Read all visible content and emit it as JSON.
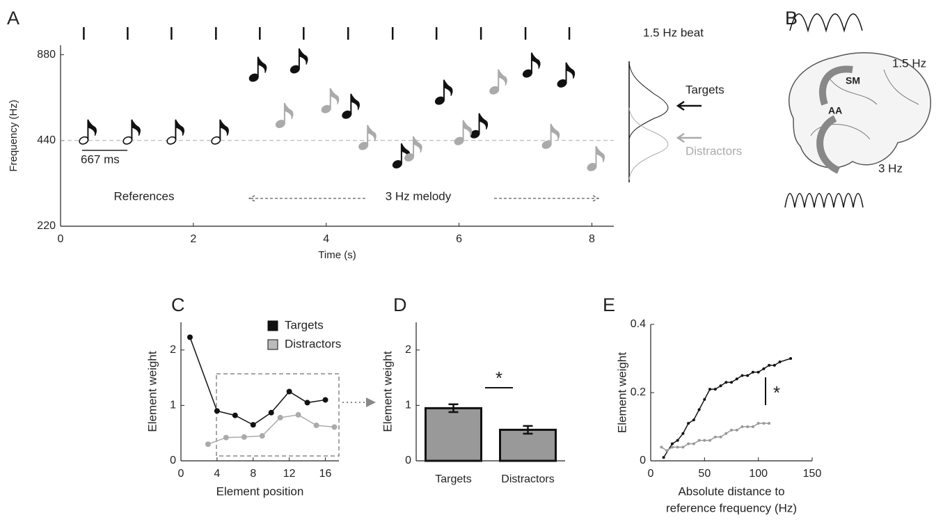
{
  "chart_data": [
    {
      "type": "scatter",
      "panel": "A",
      "xlabel": "Time (s)",
      "ylabel": "Frequency (Hz)",
      "xlim": [
        0,
        8.33
      ],
      "xticks": [
        0,
        2,
        4,
        6,
        8
      ],
      "ylim": [
        220,
        950
      ],
      "yticks": [
        220,
        440,
        880
      ],
      "log_y": true,
      "beat_label": "1.5 Hz beat",
      "beat_times": [
        0.35,
        1.01,
        1.67,
        2.34,
        3.0,
        3.66,
        4.33,
        5.0,
        5.66,
        6.33,
        7.0,
        7.66
      ],
      "reference_frequency": 440,
      "scale_bar_label": "667 ms",
      "melody_label": "3 Hz melody",
      "series": [
        {
          "name": "References",
          "color": "#111111",
          "hollow": true,
          "x": [
            0.35,
            1.01,
            1.67,
            2.34
          ],
          "values": [
            440,
            440,
            440,
            440
          ]
        },
        {
          "name": "Targets",
          "color": "#111111",
          "x": [
            2.91,
            3.53,
            4.31,
            5.07,
            5.71,
            6.24,
            7.03,
            7.55
          ],
          "values": [
            731,
            782,
            542,
            363,
            607,
            463,
            756,
            698
          ]
        },
        {
          "name": "Distractors",
          "color": "#aaaaaa",
          "x": [
            3.31,
            4.0,
            4.56,
            5.25,
            6.0,
            6.53,
            7.32,
            8.0
          ],
          "values": [
            503,
            567,
            421,
            384,
            438,
            660,
            425,
            355
          ]
        }
      ]
    },
    {
      "type": "bar",
      "panel": "D",
      "ylabel": "Element weight",
      "ylim": [
        0,
        2.5
      ],
      "yticks": [
        0,
        1,
        2
      ],
      "categories": [
        "Targets",
        "Distractors"
      ],
      "values": [
        0.95,
        0.56
      ],
      "errors": [
        0.07,
        0.07
      ],
      "color": "#999999",
      "significance": "*"
    },
    {
      "type": "line",
      "panel": "C",
      "xlabel": "Element position",
      "ylabel": "Element weight",
      "xlim": [
        0,
        17.5
      ],
      "xticks": [
        0,
        4,
        8,
        12,
        16
      ],
      "ylim": [
        0,
        2.5
      ],
      "yticks": [
        0,
        1,
        2
      ],
      "marker_size": 4,
      "series": [
        {
          "name": "Targets",
          "color": "#111111",
          "x": [
            1,
            4,
            6,
            8,
            10,
            12,
            14,
            16
          ],
          "values": [
            2.23,
            0.9,
            0.82,
            0.65,
            0.87,
            1.25,
            1.05,
            1.1
          ]
        },
        {
          "name": "Distractors",
          "color": "#aaaaaa",
          "x": [
            3,
            5,
            7,
            9,
            11,
            13,
            15,
            17
          ],
          "values": [
            0.3,
            0.42,
            0.43,
            0.45,
            0.78,
            0.83,
            0.64,
            0.61
          ]
        }
      ]
    },
    {
      "type": "line",
      "panel": "E",
      "xlabel": [
        "Absolute distance to",
        "reference frequency (Hz)"
      ],
      "ylabel": "Element weight",
      "xlim": [
        0,
        150
      ],
      "xticks": [
        0,
        50,
        100,
        150
      ],
      "ylim": [
        0,
        0.4
      ],
      "yticks": [
        0,
        0.2,
        0.4
      ],
      "marker_size": 2,
      "significance": "*",
      "series": [
        {
          "name": "Targets",
          "color": "#111111",
          "x": [
            12,
            20,
            25,
            30,
            35,
            40,
            45,
            50,
            55,
            60,
            65,
            70,
            75,
            80,
            85,
            90,
            95,
            100,
            105,
            110,
            115,
            120,
            130
          ],
          "values": [
            0.01,
            0.05,
            0.06,
            0.08,
            0.11,
            0.12,
            0.15,
            0.18,
            0.21,
            0.21,
            0.22,
            0.23,
            0.23,
            0.24,
            0.25,
            0.25,
            0.26,
            0.26,
            0.27,
            0.28,
            0.28,
            0.29,
            0.3
          ]
        },
        {
          "name": "Distractors",
          "color": "#999999",
          "x": [
            10,
            15,
            20,
            25,
            30,
            35,
            40,
            45,
            50,
            55,
            60,
            65,
            70,
            75,
            80,
            85,
            90,
            95,
            100,
            105,
            110
          ],
          "values": [
            0.04,
            0.03,
            0.04,
            0.04,
            0.04,
            0.05,
            0.05,
            0.06,
            0.06,
            0.06,
            0.07,
            0.07,
            0.08,
            0.09,
            0.09,
            0.1,
            0.1,
            0.1,
            0.11,
            0.11,
            0.11
          ]
        }
      ]
    }
  ],
  "brain_diagram": {
    "panel": "B",
    "labels": [
      "1.5 Hz",
      "SM",
      "AA",
      "3 Hz"
    ]
  }
}
